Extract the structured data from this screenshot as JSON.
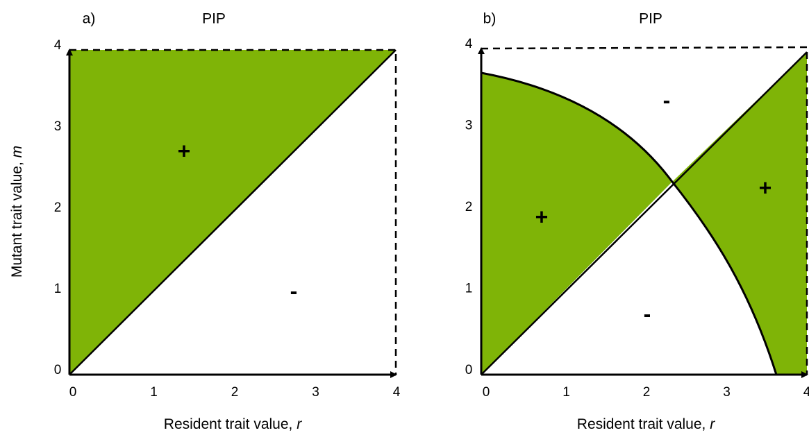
{
  "panels": [
    {
      "label": "a)",
      "title": "PIP",
      "x_label": "Resident trait value, ",
      "x_var": "r",
      "y_label": "Mutant trait value, ",
      "y_var": "m",
      "xticks": [
        0,
        1,
        2,
        3,
        4
      ],
      "yticks": [
        0,
        1,
        2,
        3,
        4
      ],
      "signs": [
        "+",
        "-"
      ]
    },
    {
      "label": "b)",
      "title": "PIP",
      "x_label": "Resident trait value, ",
      "x_var": "r",
      "xticks": [
        0,
        1,
        2,
        3,
        4
      ],
      "yticks": [
        0,
        1,
        2,
        3,
        4
      ],
      "signs": [
        "-",
        "+",
        "+",
        "-"
      ]
    }
  ]
}
